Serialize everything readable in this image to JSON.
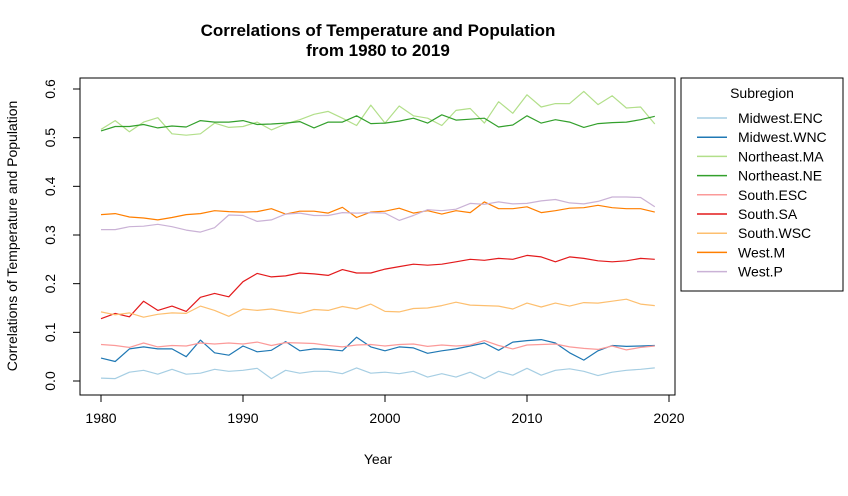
{
  "chart_data": {
    "type": "line",
    "title": "Correlations of Temperature and Population",
    "subtitle": "from 1980 to 2019",
    "xlabel": "Year",
    "ylabel": "Correlations of Temperature and Population",
    "xlim": [
      1980,
      2020
    ],
    "ylim": [
      0,
      0.6
    ],
    "xticks": [
      "1980",
      "1990",
      "2000",
      "2010",
      "2020"
    ],
    "yticks": [
      "0.0",
      "0.1",
      "0.2",
      "0.3",
      "0.4",
      "0.5",
      "0.6"
    ],
    "grid": false,
    "legend": {
      "title": "Subregion",
      "placement": "right"
    },
    "x": [
      1980,
      1981,
      1982,
      1983,
      1984,
      1985,
      1986,
      1987,
      1988,
      1989,
      1990,
      1991,
      1992,
      1993,
      1994,
      1995,
      1996,
      1997,
      1998,
      1999,
      2000,
      2001,
      2002,
      2003,
      2004,
      2005,
      2006,
      2007,
      2008,
      2009,
      2010,
      2011,
      2012,
      2013,
      2014,
      2015,
      2016,
      2017,
      2018,
      2019
    ],
    "series": [
      {
        "name": "Midwest.ENC",
        "color": "#a6cee3",
        "values": [
          0.006,
          0.005,
          0.018,
          0.022,
          0.014,
          0.024,
          0.014,
          0.016,
          0.024,
          0.02,
          0.022,
          0.026,
          0.005,
          0.022,
          0.016,
          0.02,
          0.02,
          0.015,
          0.027,
          0.016,
          0.018,
          0.015,
          0.02,
          0.008,
          0.015,
          0.008,
          0.018,
          0.005,
          0.02,
          0.012,
          0.026,
          0.012,
          0.022,
          0.025,
          0.02,
          0.011,
          0.018,
          0.022,
          0.024,
          0.027
        ]
      },
      {
        "name": "Midwest.WNC",
        "color": "#1f78b4",
        "values": [
          0.047,
          0.04,
          0.066,
          0.07,
          0.066,
          0.066,
          0.05,
          0.084,
          0.058,
          0.053,
          0.072,
          0.06,
          0.063,
          0.081,
          0.062,
          0.066,
          0.065,
          0.062,
          0.09,
          0.07,
          0.062,
          0.07,
          0.068,
          0.057,
          0.062,
          0.066,
          0.072,
          0.078,
          0.063,
          0.08,
          0.083,
          0.085,
          0.078,
          0.058,
          0.043,
          0.062,
          0.073,
          0.071,
          0.072,
          0.073
        ]
      },
      {
        "name": "Northeast.MA",
        "color": "#b2df8a",
        "values": [
          0.517,
          0.535,
          0.512,
          0.532,
          0.541,
          0.508,
          0.505,
          0.508,
          0.53,
          0.521,
          0.523,
          0.532,
          0.516,
          0.528,
          0.537,
          0.548,
          0.554,
          0.54,
          0.525,
          0.567,
          0.53,
          0.565,
          0.545,
          0.54,
          0.525,
          0.556,
          0.56,
          0.53,
          0.574,
          0.55,
          0.588,
          0.563,
          0.57,
          0.57,
          0.595,
          0.568,
          0.586,
          0.561,
          0.563,
          0.528
        ]
      },
      {
        "name": "Northeast.NE",
        "color": "#33a02c",
        "values": [
          0.514,
          0.523,
          0.523,
          0.527,
          0.52,
          0.524,
          0.522,
          0.535,
          0.532,
          0.532,
          0.535,
          0.527,
          0.528,
          0.53,
          0.533,
          0.52,
          0.532,
          0.532,
          0.545,
          0.529,
          0.53,
          0.534,
          0.54,
          0.53,
          0.547,
          0.536,
          0.538,
          0.54,
          0.522,
          0.526,
          0.545,
          0.53,
          0.537,
          0.532,
          0.521,
          0.529,
          0.531,
          0.532,
          0.537,
          0.544
        ]
      },
      {
        "name": "South.ESC",
        "color": "#fb9a99",
        "values": [
          0.075,
          0.073,
          0.069,
          0.078,
          0.07,
          0.073,
          0.072,
          0.078,
          0.076,
          0.078,
          0.076,
          0.08,
          0.073,
          0.079,
          0.078,
          0.077,
          0.073,
          0.07,
          0.074,
          0.075,
          0.072,
          0.075,
          0.076,
          0.071,
          0.074,
          0.072,
          0.074,
          0.083,
          0.073,
          0.066,
          0.074,
          0.075,
          0.076,
          0.07,
          0.067,
          0.065,
          0.072,
          0.064,
          0.069,
          0.072
        ]
      },
      {
        "name": "South.SA",
        "color": "#e31a1c",
        "values": [
          0.128,
          0.139,
          0.132,
          0.164,
          0.145,
          0.154,
          0.143,
          0.172,
          0.18,
          0.173,
          0.204,
          0.221,
          0.214,
          0.216,
          0.222,
          0.22,
          0.217,
          0.229,
          0.222,
          0.222,
          0.23,
          0.235,
          0.24,
          0.238,
          0.24,
          0.245,
          0.25,
          0.248,
          0.252,
          0.25,
          0.258,
          0.255,
          0.245,
          0.255,
          0.252,
          0.247,
          0.245,
          0.247,
          0.252,
          0.25
        ]
      },
      {
        "name": "South.WSC",
        "color": "#fdbf6f",
        "values": [
          0.142,
          0.136,
          0.14,
          0.131,
          0.137,
          0.14,
          0.139,
          0.154,
          0.145,
          0.133,
          0.148,
          0.145,
          0.148,
          0.143,
          0.139,
          0.147,
          0.145,
          0.153,
          0.148,
          0.158,
          0.143,
          0.142,
          0.149,
          0.15,
          0.155,
          0.162,
          0.156,
          0.155,
          0.154,
          0.148,
          0.16,
          0.152,
          0.16,
          0.154,
          0.161,
          0.16,
          0.164,
          0.168,
          0.158,
          0.155
        ]
      },
      {
        "name": "West.M",
        "color": "#ff7f00",
        "values": [
          0.342,
          0.344,
          0.337,
          0.335,
          0.331,
          0.336,
          0.342,
          0.344,
          0.35,
          0.348,
          0.347,
          0.348,
          0.354,
          0.343,
          0.349,
          0.349,
          0.345,
          0.357,
          0.336,
          0.347,
          0.349,
          0.355,
          0.345,
          0.35,
          0.343,
          0.35,
          0.346,
          0.368,
          0.354,
          0.354,
          0.358,
          0.346,
          0.35,
          0.355,
          0.356,
          0.361,
          0.356,
          0.354,
          0.354,
          0.347
        ]
      },
      {
        "name": "West.P",
        "color": "#cab2d6",
        "values": [
          0.311,
          0.311,
          0.317,
          0.318,
          0.322,
          0.317,
          0.31,
          0.306,
          0.315,
          0.341,
          0.34,
          0.328,
          0.331,
          0.343,
          0.345,
          0.34,
          0.34,
          0.346,
          0.345,
          0.346,
          0.345,
          0.33,
          0.34,
          0.352,
          0.35,
          0.353,
          0.365,
          0.363,
          0.368,
          0.364,
          0.365,
          0.37,
          0.373,
          0.366,
          0.364,
          0.369,
          0.378,
          0.378,
          0.377,
          0.358
        ]
      }
    ]
  }
}
